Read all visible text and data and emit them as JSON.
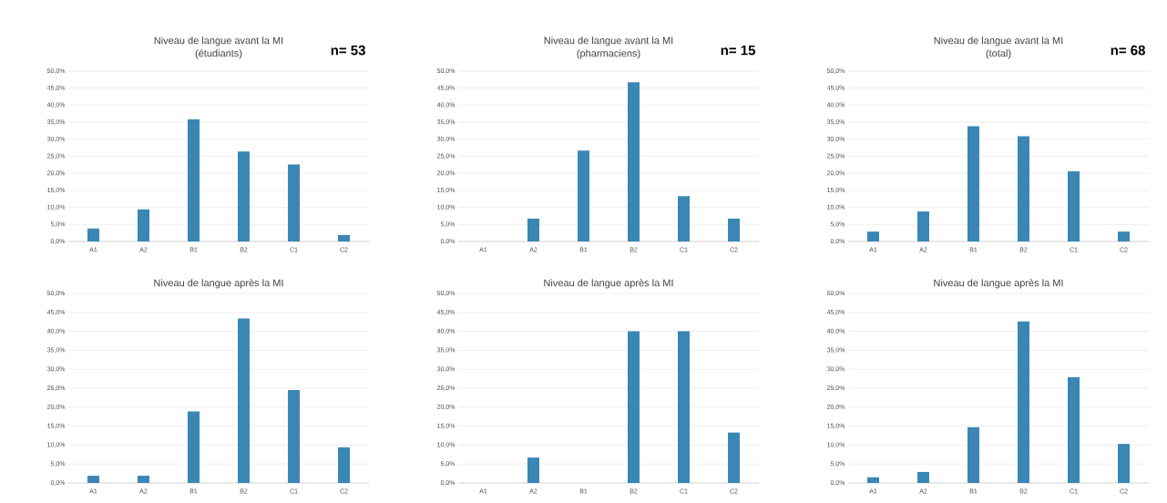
{
  "chart_data": [
    {
      "type": "bar",
      "title": "Niveau de langue avant la MI",
      "subtitle": "(étudiants)",
      "annotations": [
        "n= 53"
      ],
      "categories": [
        "A1",
        "A2",
        "B1",
        "B2",
        "C1",
        "C2"
      ],
      "values": [
        3.8,
        9.4,
        35.8,
        26.4,
        22.6,
        1.9
      ],
      "color": "#3a87b5",
      "ylim": [
        0,
        50
      ],
      "yticks": [
        {
          "value": 0,
          "label": "0,0%"
        },
        {
          "value": 5,
          "label": "5,0%"
        },
        {
          "value": 10,
          "label": "10,0%"
        },
        {
          "value": 15,
          "label": "15,0%"
        },
        {
          "value": 20,
          "label": "20,0%"
        },
        {
          "value": 25,
          "label": "25,0%"
        },
        {
          "value": 30,
          "label": "30,0%"
        },
        {
          "value": 35,
          "label": "35,0%"
        },
        {
          "value": 40,
          "label": "40,0%"
        },
        {
          "value": 45,
          "label": "45,0%"
        },
        {
          "value": 50,
          "label": "50,0%"
        }
      ],
      "grid": "y"
    },
    {
      "type": "bar",
      "title": "Niveau de langue avant la MI",
      "subtitle": "(pharmaciens)",
      "annotations": [
        "n= 15"
      ],
      "categories": [
        "A1",
        "A2",
        "B1",
        "B2",
        "C1",
        "C2"
      ],
      "values": [
        0,
        6.7,
        26.7,
        46.7,
        13.3,
        6.7
      ],
      "color": "#3a87b5",
      "ylim": [
        0,
        50
      ],
      "yticks": [
        {
          "value": 0,
          "label": "0,0%"
        },
        {
          "value": 5,
          "label": "5,0%"
        },
        {
          "value": 10,
          "label": "10,0%"
        },
        {
          "value": 15,
          "label": "15,0%"
        },
        {
          "value": 20,
          "label": "20,0%"
        },
        {
          "value": 25,
          "label": "25,0%"
        },
        {
          "value": 30,
          "label": "30,0%"
        },
        {
          "value": 35,
          "label": "35,0%"
        },
        {
          "value": 40,
          "label": "40,0%"
        },
        {
          "value": 45,
          "label": "45,0%"
        },
        {
          "value": 50,
          "label": "50,0%"
        }
      ],
      "grid": "y"
    },
    {
      "type": "bar",
      "title": "Niveau de langue avant la MI",
      "subtitle": "(total)",
      "annotations": [
        "n= 68"
      ],
      "categories": [
        "A1",
        "A2",
        "B1",
        "B2",
        "C1",
        "C2"
      ],
      "values": [
        2.9,
        8.8,
        33.8,
        30.9,
        20.6,
        2.9
      ],
      "color": "#3a87b5",
      "ylim": [
        0,
        50
      ],
      "yticks": [
        {
          "value": 0,
          "label": "0,0%"
        },
        {
          "value": 5,
          "label": "5,0%"
        },
        {
          "value": 10,
          "label": "10,0%"
        },
        {
          "value": 15,
          "label": "15,0%"
        },
        {
          "value": 20,
          "label": "20,0%"
        },
        {
          "value": 25,
          "label": "25,0%"
        },
        {
          "value": 30,
          "label": "30,0%"
        },
        {
          "value": 35,
          "label": "35,0%"
        },
        {
          "value": 40,
          "label": "40,0%"
        },
        {
          "value": 45,
          "label": "45,0%"
        },
        {
          "value": 50,
          "label": "50,0%"
        }
      ],
      "grid": "y"
    },
    {
      "type": "bar",
      "title": "Niveau de langue après la MI",
      "categories": [
        "A1",
        "A2",
        "B1",
        "B2",
        "C1",
        "C2"
      ],
      "values": [
        1.9,
        1.9,
        18.9,
        43.4,
        24.5,
        9.4
      ],
      "color": "#3a87b5",
      "ylim": [
        0,
        50
      ],
      "yticks": [
        {
          "value": 0,
          "label": "0,0%"
        },
        {
          "value": 5,
          "label": "5,0%"
        },
        {
          "value": 10,
          "label": "10,0%"
        },
        {
          "value": 15,
          "label": "15,0%"
        },
        {
          "value": 20,
          "label": "20,0%"
        },
        {
          "value": 25,
          "label": "25,0%"
        },
        {
          "value": 30,
          "label": "30,0%"
        },
        {
          "value": 35,
          "label": "35,0%"
        },
        {
          "value": 40,
          "label": "40,0%"
        },
        {
          "value": 45,
          "label": "45,0%"
        },
        {
          "value": 50,
          "label": "50,0%"
        }
      ],
      "grid": "y"
    },
    {
      "type": "bar",
      "title": "Niveau de langue après la MI",
      "categories": [
        "A1",
        "A2",
        "B1",
        "B2",
        "C1",
        "C2"
      ],
      "values": [
        0,
        6.7,
        0,
        40,
        40,
        13.3
      ],
      "color": "#3a87b5",
      "ylim": [
        0,
        50
      ],
      "yticks": [
        {
          "value": 0,
          "label": "0,0%"
        },
        {
          "value": 5,
          "label": "5,0%"
        },
        {
          "value": 10,
          "label": "10,0%"
        },
        {
          "value": 15,
          "label": "15,0%"
        },
        {
          "value": 20,
          "label": "20,0%"
        },
        {
          "value": 25,
          "label": "25,0%"
        },
        {
          "value": 30,
          "label": "30,0%"
        },
        {
          "value": 35,
          "label": "35,0%"
        },
        {
          "value": 40,
          "label": "40,0%"
        },
        {
          "value": 45,
          "label": "45,0%"
        },
        {
          "value": 50,
          "label": "50,0%"
        }
      ],
      "grid": "y"
    },
    {
      "type": "bar",
      "title": "Niveau de langue après la MI",
      "categories": [
        "A1",
        "A2",
        "B1",
        "B2",
        "C1",
        "C2"
      ],
      "values": [
        1.5,
        2.9,
        14.7,
        42.6,
        27.9,
        10.3
      ],
      "color": "#3a87b5",
      "ylim": [
        0,
        50
      ],
      "yticks": [
        {
          "value": 0,
          "label": "0,0%"
        },
        {
          "value": 5,
          "label": "5,0%"
        },
        {
          "value": 10,
          "label": "10,0%"
        },
        {
          "value": 15,
          "label": "15,0%"
        },
        {
          "value": 20,
          "label": "20,0%"
        },
        {
          "value": 25,
          "label": "25,0%"
        },
        {
          "value": 30,
          "label": "30,0%"
        },
        {
          "value": 35,
          "label": "35,0%"
        },
        {
          "value": 40,
          "label": "40,0%"
        },
        {
          "value": 45,
          "label": "45,0%"
        },
        {
          "value": 50,
          "label": "50,0%"
        }
      ],
      "grid": "y"
    }
  ]
}
